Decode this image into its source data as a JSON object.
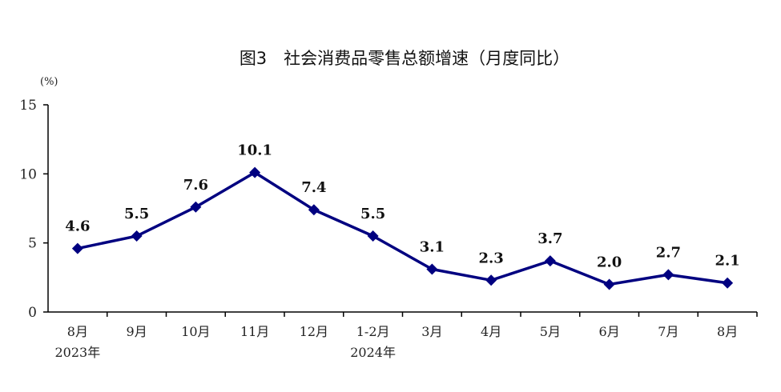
{
  "chart_data": {
    "type": "line",
    "title": "图3　社会消费品零售总额增速（月度同比）",
    "ylabel": "(%)",
    "ylim": [
      0,
      15
    ],
    "yticks": [
      "0",
      "5",
      "10",
      "15"
    ],
    "categories": [
      "8月",
      "9月",
      "10月",
      "11月",
      "12月",
      "1-2月",
      "3月",
      "4月",
      "5月",
      "6月",
      "7月",
      "8月"
    ],
    "year_labels": [
      {
        "index": 0,
        "label": "2023年"
      },
      {
        "index": 5,
        "label": "2024年"
      }
    ],
    "series": [
      {
        "values": [
          4.6,
          5.5,
          7.6,
          10.1,
          7.4,
          5.5,
          3.1,
          2.3,
          3.7,
          2.0,
          2.7,
          2.1
        ],
        "labels": [
          "4.6",
          "5.5",
          "7.6",
          "10.1",
          "7.4",
          "5.5",
          "3.1",
          "2.3",
          "3.7",
          "2.0",
          "2.7",
          "2.1"
        ],
        "color": "#000080"
      }
    ],
    "grid": false,
    "legend": "none"
  }
}
